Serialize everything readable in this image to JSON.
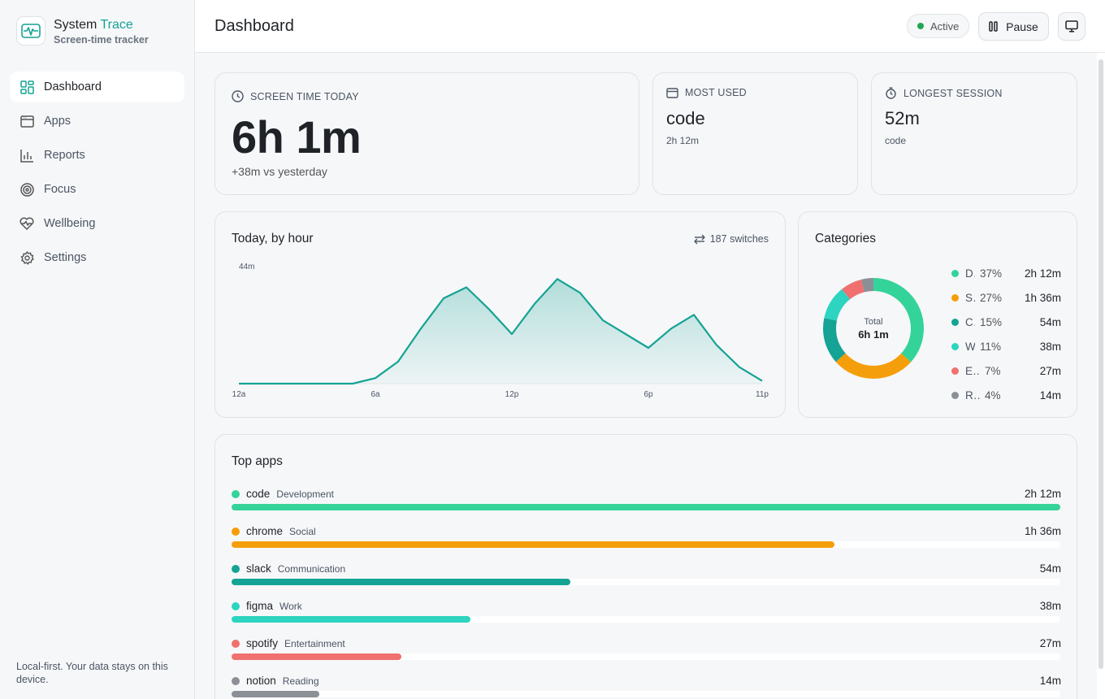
{
  "brand": {
    "title_prefix": "System ",
    "title_accent": "Trace",
    "subtitle": "Screen-time tracker",
    "icon": "pulse-icon"
  },
  "sidebar": {
    "items": [
      {
        "label": "Dashboard",
        "icon": "dashboard-icon",
        "active": true
      },
      {
        "label": "Apps",
        "icon": "window-icon"
      },
      {
        "label": "Reports",
        "icon": "bar-chart-icon"
      },
      {
        "label": "Focus",
        "icon": "target-icon"
      },
      {
        "label": "Wellbeing",
        "icon": "heart-pulse-icon"
      },
      {
        "label": "Settings",
        "icon": "gear-icon"
      }
    ],
    "footer": "Local-first. Your data stays on this device."
  },
  "header": {
    "title": "Dashboard",
    "status": "Active",
    "pause_label": "Pause",
    "status_color": "#22a652"
  },
  "stats": {
    "screen_time": {
      "label": "SCREEN TIME TODAY",
      "value": "6h 1m",
      "delta": "+38m vs yesterday"
    },
    "most_used": {
      "label": "MOST USED",
      "value": "code",
      "sub": "2h 12m"
    },
    "longest": {
      "label": "LONGEST SESSION",
      "value": "52m",
      "sub": "code"
    }
  },
  "hourly": {
    "title": "Today, by hour",
    "switches": "187 switches",
    "max_label": "44m",
    "x_labels": [
      "12a",
      "6a",
      "12p",
      "6p",
      "11p"
    ]
  },
  "categories": {
    "title": "Categories",
    "total_label": "Total",
    "total_value": "6h 1m",
    "items": [
      {
        "name": "Development",
        "pct": "37%",
        "time": "2h 12m",
        "color": "#34d399",
        "share": 37
      },
      {
        "name": "Social",
        "pct": "27%",
        "time": "1h 36m",
        "color": "#f59e0b",
        "share": 27
      },
      {
        "name": "Communication",
        "pct": "15%",
        "time": "54m",
        "color": "#14a394",
        "share": 15
      },
      {
        "name": "Work",
        "pct": "11%",
        "time": "38m",
        "color": "#2dd4bf",
        "share": 11
      },
      {
        "name": "Entertainment",
        "pct": "7%",
        "time": "27m",
        "color": "#f07070",
        "share": 7
      },
      {
        "name": "Reading",
        "pct": "4%",
        "time": "14m",
        "color": "#8b8f96",
        "share": 4
      }
    ]
  },
  "top_apps": {
    "title": "Top apps",
    "items": [
      {
        "name": "code",
        "category": "Development",
        "time": "2h 12m",
        "color": "#34d399",
        "fraction": 1.0
      },
      {
        "name": "chrome",
        "category": "Social",
        "time": "1h 36m",
        "color": "#f59e0b",
        "fraction": 0.727
      },
      {
        "name": "slack",
        "category": "Communication",
        "time": "54m",
        "color": "#14a394",
        "fraction": 0.409
      },
      {
        "name": "figma",
        "category": "Work",
        "time": "38m",
        "color": "#2dd4bf",
        "fraction": 0.288
      },
      {
        "name": "spotify",
        "category": "Entertainment",
        "time": "27m",
        "color": "#f07070",
        "fraction": 0.205
      },
      {
        "name": "notion",
        "category": "Reading",
        "time": "14m",
        "color": "#8b8f96",
        "fraction": 0.106
      }
    ]
  },
  "chart_data": {
    "type": "area",
    "title": "Today, by hour",
    "x": [
      0,
      1,
      2,
      3,
      4,
      5,
      6,
      7,
      8,
      9,
      10,
      11,
      12,
      13,
      14,
      15,
      16,
      17,
      18,
      19,
      20,
      21,
      22,
      23
    ],
    "values": [
      0,
      0,
      0,
      0,
      0,
      0,
      2,
      8,
      20,
      31,
      35,
      27,
      18,
      29,
      38,
      33,
      23,
      18,
      13,
      20,
      25,
      14,
      6,
      1
    ],
    "ylim": [
      0,
      44
    ],
    "y_label_max": "44m",
    "color": "#14a394"
  }
}
